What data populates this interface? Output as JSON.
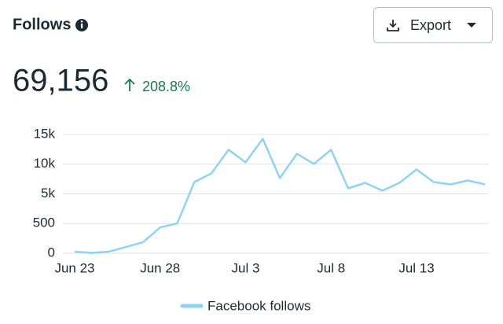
{
  "chart_data": {
    "type": "line",
    "title": "Follows",
    "button": "Export",
    "total": "69,156",
    "change": "208.8%",
    "categories": [
      "Jun 23",
      null,
      null,
      null,
      null,
      "Jun 28",
      null,
      null,
      null,
      null,
      "Jul 3",
      null,
      null,
      null,
      null,
      "Jul 8",
      null,
      null,
      null,
      null,
      "Jul 13",
      null,
      null,
      null,
      null
    ],
    "series": [
      {
        "name": "Facebook follows",
        "color": "#8fd3f4",
        "values": [
          26,
          5,
          26,
          105,
          184,
          434,
          513,
          6990,
          8450,
          12430,
          10300,
          14280,
          7650,
          11760,
          10040,
          12430,
          5930,
          6860,
          5530,
          6860,
          9110,
          6990,
          6590,
          7250,
          6590
        ]
      }
    ],
    "ylim": [
      0,
      15000
    ],
    "yticks": [
      0,
      500,
      {
        "value": 5000,
        "label": "5k"
      },
      {
        "value": 10000,
        "label": "10k"
      },
      {
        "value": 15000,
        "label": "15k"
      }
    ],
    "grid": true,
    "legend": "bottom"
  }
}
